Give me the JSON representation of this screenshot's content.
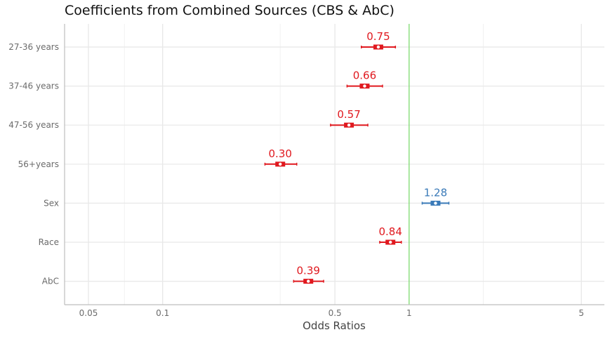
{
  "chart_data": {
    "type": "forest",
    "title": "Coefficients from Combined Sources (CBS & AbC)",
    "xlabel": "Odds Ratios",
    "ylabel": "",
    "x_scale": "log",
    "xlim": [
      0.04,
      6.2
    ],
    "x_ticks": [
      0.05,
      0.1,
      0.5,
      1,
      5
    ],
    "x_tick_labels": [
      "0.05",
      "0.1",
      "0.5",
      "1",
      "5"
    ],
    "x_minor_gridlines": [
      0.07,
      0.3,
      2
    ],
    "reference_line": 1,
    "reference_line_color": "#7ddc6e",
    "grid": true,
    "categories": [
      "27-36 years",
      "37-46 years",
      "47-56 years",
      "56+years",
      "Sex",
      "Race",
      "AbC"
    ],
    "estimates": [
      0.75,
      0.66,
      0.57,
      0.3,
      1.28,
      0.84,
      0.39
    ],
    "estimate_labels": [
      "0.75",
      "0.66",
      "0.57",
      "0.30",
      "1.28",
      "0.84",
      "0.39"
    ],
    "ci_lower": [
      0.64,
      0.56,
      0.48,
      0.26,
      1.13,
      0.76,
      0.34
    ],
    "ci_upper": [
      0.88,
      0.78,
      0.68,
      0.35,
      1.45,
      0.93,
      0.45
    ],
    "direction": [
      "negative",
      "negative",
      "negative",
      "negative",
      "positive",
      "negative",
      "negative"
    ],
    "colors": {
      "negative": "#e0191f",
      "positive": "#3a7ab8"
    }
  }
}
